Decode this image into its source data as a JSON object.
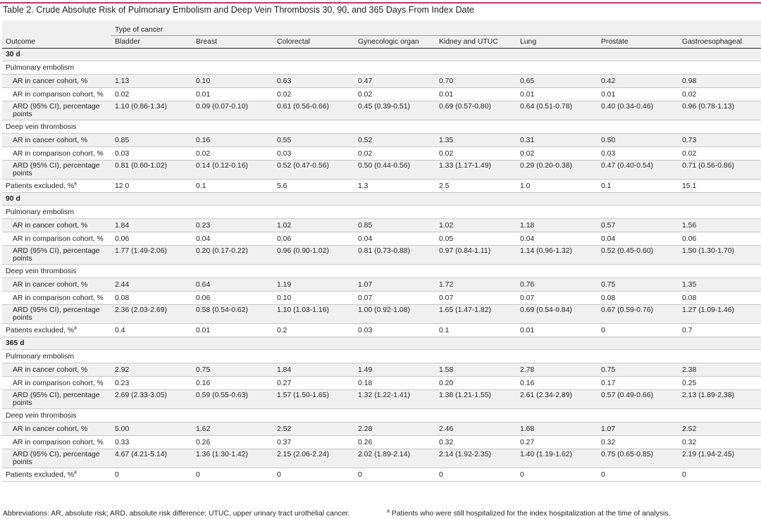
{
  "title": "Table 2. Crude Absolute Risk of Pulmonary Embolism and Deep Vein Thrombosis 30, 90, and 365 Days From Index Date",
  "header": {
    "outcome": "Outcome",
    "type_of_cancer": "Type of cancer",
    "columns": [
      "Bladder",
      "Breast",
      "Colorectal",
      "Gynecologic organ",
      "Kidney and UTUC",
      "Lung",
      "Prostate",
      "Gastroesophageal"
    ]
  },
  "periods": [
    {
      "label": "30 d",
      "pe": {
        "label": "Pulmonary embolism",
        "ar_cancer": {
          "label": "AR in cancer cohort, %",
          "values": [
            "1.13",
            "0.10",
            "0.63",
            "0.47",
            "0.70",
            "0.65",
            "0.42",
            "0.98"
          ]
        },
        "ar_comparison": {
          "label": "AR in comparison cohort, %",
          "values": [
            "0.02",
            "0.01",
            "0.02",
            "0.02",
            "0.01",
            "0.01",
            "0.01",
            "0.02"
          ]
        },
        "ard": {
          "label": "ARD (95% CI), percentage points",
          "values": [
            "1.10 (0.86-1.34)",
            "0.09 (0.07-0.10)",
            "0.61 (0.56-0.66)",
            "0.45 (0.39-0.51)",
            "0.69 (0.57-0.80)",
            "0.64 (0.51-0.78)",
            "0.40 (0.34-0.46)",
            "0.96 (0.78-1.13)"
          ]
        }
      },
      "dvt": {
        "label": "Deep vein thrombosis",
        "ar_cancer": {
          "label": "AR in cancer cohort, %",
          "values": [
            "0.85",
            "0.16",
            "0.55",
            "0.52",
            "1.35",
            "0.31",
            "0.50",
            "0.73"
          ]
        },
        "ar_comparison": {
          "label": "AR in comparison cohort, %",
          "values": [
            "0.03",
            "0.02",
            "0.03",
            "0.02",
            "0.02",
            "0.02",
            "0.03",
            "0.02"
          ]
        },
        "ard": {
          "label": "ARD (95% CI), percentage points",
          "values": [
            "0.81 (0.60-1.02)",
            "0.14 (0.12-0.16)",
            "0.52 (0.47-0.56)",
            "0.50 (0.44-0.56)",
            "1.33 (1.17-1.49)",
            "0.29 (0.20-0.38)",
            "0.47 (0.40-0.54)",
            "0.71 (0.56-0.86)"
          ]
        }
      },
      "excluded": {
        "label": "Patients excluded, %",
        "sup": "a",
        "values": [
          "12.0",
          "0.1",
          "5.6",
          "1.3",
          "2.5",
          "1.0",
          "0.1",
          "15.1"
        ]
      }
    },
    {
      "label": "90 d",
      "pe": {
        "label": "Pulmonary embolism",
        "ar_cancer": {
          "label": "AR in cancer cohort, %",
          "values": [
            "1.84",
            "0.23",
            "1.02",
            "0.85",
            "1.02",
            "1.18",
            "0.57",
            "1.56"
          ]
        },
        "ar_comparison": {
          "label": "AR in comparison cohort, %",
          "values": [
            "0.06",
            "0.04",
            "0.06",
            "0.04",
            "0.05",
            "0.04",
            "0.04",
            "0.06"
          ]
        },
        "ard": {
          "label": "ARD (95% CI), percentage points",
          "values": [
            "1.77 (1.49-2.06)",
            "0.20 (0.17-0.22)",
            "0.96 (0.90-1.02)",
            "0.81 (0.73-0.88)",
            "0.97 (0.84-1.11)",
            "1.14 (0.96-1.32)",
            "0.52 (0.45-0.60)",
            "1.50 (1.30-1.70)"
          ]
        }
      },
      "dvt": {
        "label": "Deep vein thrombosis",
        "ar_cancer": {
          "label": "AR in cancer cohort, %",
          "values": [
            "2.44",
            "0.64",
            "1.19",
            "1.07",
            "1.72",
            "0.76",
            "0.75",
            "1.35"
          ]
        },
        "ar_comparison": {
          "label": "AR in comparison cohort, %",
          "values": [
            "0.08",
            "0.06",
            "0.10",
            "0.07",
            "0.07",
            "0.07",
            "0.08",
            "0.08"
          ]
        },
        "ard": {
          "label": "ARD (95% CI), percentage points",
          "values": [
            "2.36 (2.03-2.69)",
            "0.58 (0.54-0.62)",
            "1.10 (1.03-1.16)",
            "1.00 (0.92-1.08)",
            "1.65 (1.47-1.82)",
            "0.69 (0.54-0.84)",
            "0.67 (0.59-0.76)",
            "1.27 (1.09-1.46)"
          ]
        }
      },
      "excluded": {
        "label": "Patients excluded, %",
        "sup": "a",
        "values": [
          "0.4",
          "0.01",
          "0.2",
          "0.03",
          "0.1",
          "0.01",
          "0",
          "0.7"
        ]
      }
    },
    {
      "label": "365 d",
      "pe": {
        "label": "Pulmonary embolism",
        "ar_cancer": {
          "label": "AR in cancer cohort, %",
          "values": [
            "2.92",
            "0.75",
            "1.84",
            "1.49",
            "1.58",
            "2.78",
            "0.75",
            "2.38"
          ]
        },
        "ar_comparison": {
          "label": "AR in comparison cohort, %",
          "values": [
            "0.23",
            "0.16",
            "0.27",
            "0.18",
            "0.20",
            "0.16",
            "0.17",
            "0.25"
          ]
        },
        "ard": {
          "label": "ARD (95% CI), percentage points",
          "values": [
            "2.69 (2.33-3.05)",
            "0.59 (0.55-0.63)",
            "1.57 (1.50-1.65)",
            "1.32 (1.22-1.41)",
            "1.38 (1.21-1.55)",
            "2.61 (2.34-2.89)",
            "0.57 (0.49-0.66)",
            "2.13 (1.89-2.38)"
          ]
        }
      },
      "dvt": {
        "label": "Deep vein thrombosis",
        "ar_cancer": {
          "label": "AR in cancer cohort, %",
          "values": [
            "5.00",
            "1.62",
            "2.52",
            "2.28",
            "2.46",
            "1.68",
            "1.07",
            "2.52"
          ]
        },
        "ar_comparison": {
          "label": "AR in comparison cohort, %",
          "values": [
            "0.33",
            "0.26",
            "0.37",
            "0.26",
            "0.32",
            "0.27",
            "0.32",
            "0.32"
          ]
        },
        "ard": {
          "label": "ARD (95% CI), percentage points",
          "values": [
            "4.67 (4.21-5.14)",
            "1.36 (1.30-1.42)",
            "2.15 (2.06-2.24)",
            "2.02 (1.89-2.14)",
            "2.14 (1.92-2.35)",
            "1.40 (1.19-1.62)",
            "0.75 (0.65-0.85)",
            "2.19 (1.94-2.45)"
          ]
        }
      },
      "excluded": {
        "label": "Patients excluded, %",
        "sup": "a",
        "values": [
          "0",
          "0",
          "0",
          "0",
          "0",
          "0",
          "0",
          "0"
        ]
      }
    }
  ],
  "footer": {
    "abbreviations": "Abbreviations: AR, absolute risk; ARD, absolute risk difference; UTUC, upper urinary tract urothelial cancer.",
    "footnote_marker": "a",
    "footnote": "Patients who were still hospitalized for the index hospitalization at the time of analysis."
  },
  "colors": {
    "accent_rule": "#d6295f",
    "row_shade": "#f0f0f0",
    "text": "#231f20"
  }
}
